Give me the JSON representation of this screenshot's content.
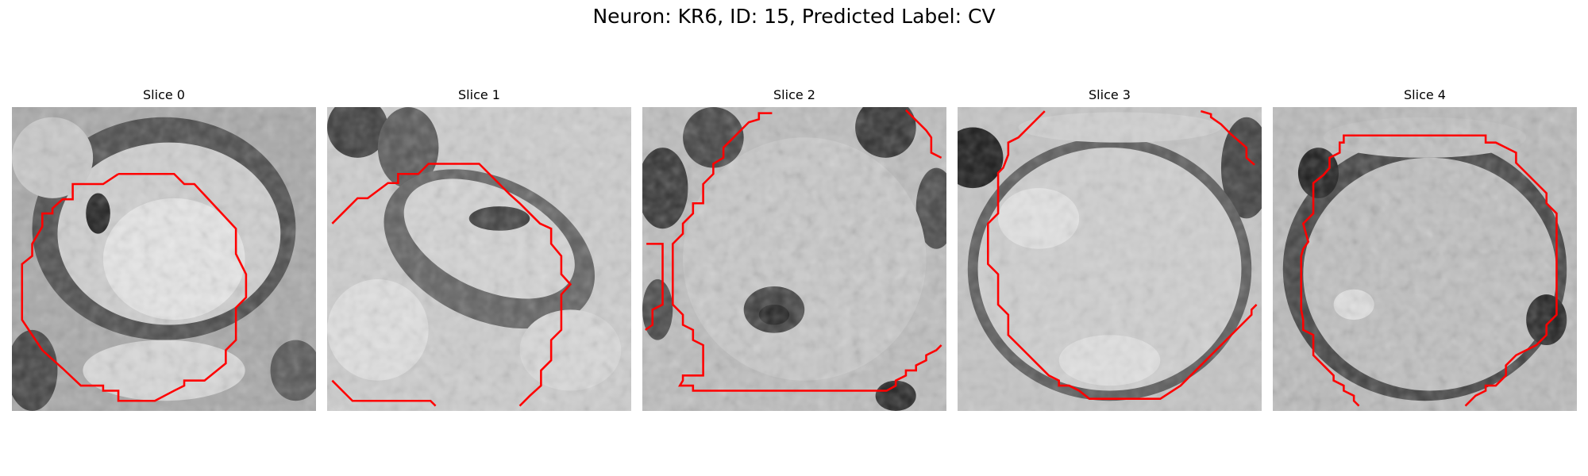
{
  "figure": {
    "title": "Neuron: KR6, ID: 15, Predicted Label: CV",
    "contour_color": "#ff0000"
  },
  "slices": [
    {
      "label": "Slice 0"
    },
    {
      "label": "Slice 1"
    },
    {
      "label": "Slice 2"
    },
    {
      "label": "Slice 3"
    },
    {
      "label": "Slice 4"
    }
  ]
}
